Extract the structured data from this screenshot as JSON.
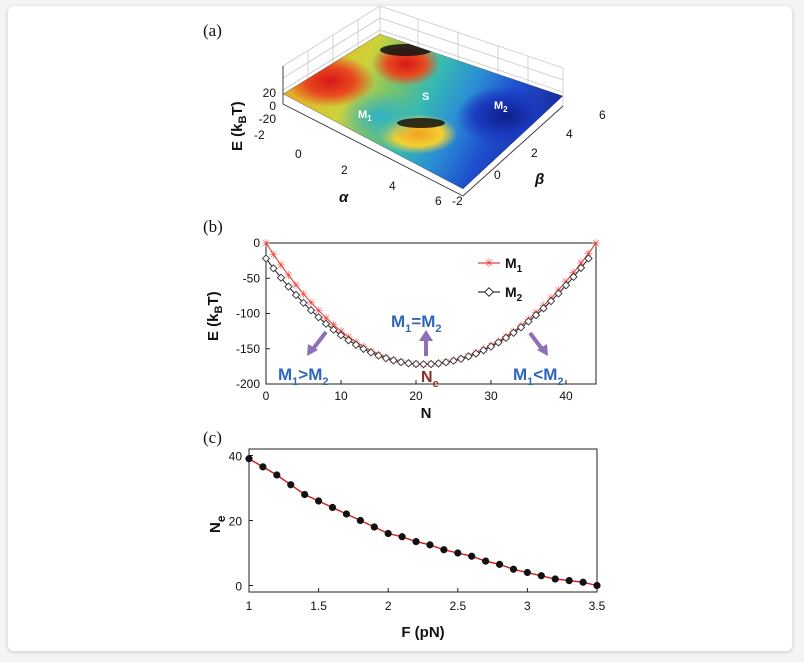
{
  "chart_data": [
    {
      "panel": "(a)",
      "type": "surface3d",
      "zlabel": "E (k",
      "zlabel_sub": "B",
      "zlabel_end": "T)",
      "xlabel": "α",
      "ylabel": "β",
      "x_ticks": [
        "-2",
        "0",
        "2",
        "4",
        "6"
      ],
      "y_ticks": [
        "-2",
        "0",
        "2",
        "4",
        "6"
      ],
      "z_ticks": [
        "20",
        "0",
        "-20"
      ],
      "annotations": {
        "m1": "M",
        "m1_sub": "1",
        "s": "S",
        "m2": "M",
        "m2_sub": "2"
      }
    },
    {
      "panel": "(b)",
      "type": "line",
      "xlabel": "N",
      "ylabel": "E (k",
      "ylabel_sub": "B",
      "ylabel_end": "T)",
      "xlim": [
        0,
        44
      ],
      "ylim": [
        -200,
        0
      ],
      "x_ticks": [
        "0",
        "10",
        "20",
        "30",
        "40"
      ],
      "y_ticks": [
        "0",
        "-50",
        "-100",
        "-150",
        "-200"
      ],
      "series": [
        {
          "name": "M",
          "name_sub": "1",
          "color": "#e8413a",
          "marker": "asterisk",
          "x_from": 0,
          "x_to": 44,
          "min_x": 21,
          "min_y": -172,
          "end_y": 0
        },
        {
          "name": "M",
          "name_sub": "2",
          "color": "#333333",
          "marker": "diamond",
          "x_from": 0,
          "x_to": 43,
          "min_x": 21,
          "min_y": -172,
          "end_y": -22
        }
      ],
      "annotations": {
        "left": {
          "a": "M",
          "a_sub": "1",
          "op": ">M",
          "b_sub": "2"
        },
        "mid": {
          "a": "M",
          "a_sub": "1",
          "op": "=M",
          "b_sub": "2"
        },
        "right": {
          "a": "M",
          "a_sub": "1",
          "op": "<M",
          "b_sub": "2"
        },
        "ne": "N",
        "ne_sub": "e"
      }
    },
    {
      "panel": "(c)",
      "type": "scatter",
      "xlabel": "F (pN)",
      "ylabel": "N",
      "ylabel_sub": "e",
      "xlim": [
        1,
        3.5
      ],
      "ylim": [
        -2,
        42
      ],
      "x_ticks": [
        "1",
        "1.5",
        "2",
        "2.5",
        "3",
        "3.5"
      ],
      "y_ticks": [
        "0",
        "20",
        "40"
      ],
      "colors": {
        "points": "#111111",
        "fit": "#d11a1a"
      },
      "x": [
        1.0,
        1.1,
        1.2,
        1.3,
        1.4,
        1.5,
        1.6,
        1.7,
        1.8,
        1.9,
        2.0,
        2.1,
        2.2,
        2.3,
        2.4,
        2.5,
        2.6,
        2.7,
        2.8,
        2.9,
        3.0,
        3.1,
        3.2,
        3.3,
        3.4,
        3.5
      ],
      "y": [
        39,
        36.5,
        34,
        31,
        28,
        26,
        24,
        22,
        20,
        18,
        16,
        15,
        13.5,
        12.5,
        11,
        10,
        9,
        7.5,
        6.5,
        5,
        4,
        3,
        2,
        1.5,
        1,
        0
      ]
    }
  ]
}
